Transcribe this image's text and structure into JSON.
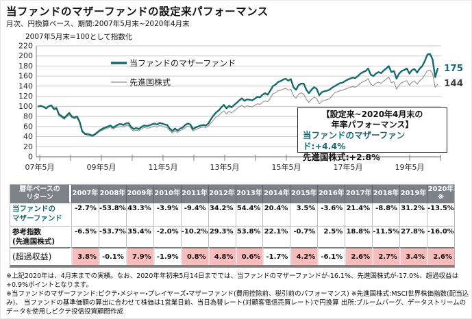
{
  "page": {
    "title": "当ファンドのマザーファンドの設定来パフォーマンス",
    "subtitle": "月次、円換算ベース、期間:2007年5月末~2020年4月末"
  },
  "colors": {
    "fund_teal": "#166a6d",
    "index_gray": "#8f8f8f",
    "axis_gray": "#7f7f7f",
    "grid_gray": "#c9c9c9",
    "table_header_bg": "#7d8288",
    "highlight_pink": "#f8bcbc"
  },
  "chart": {
    "index_note": "2007年5月末=100として指数化",
    "end_labels": {
      "fund": "175",
      "index": "144"
    },
    "annotation": {
      "heading": "【設定来~2020年4月末の\n年率パフォーマンス】",
      "fund_line": "当ファンドのマザーファンド:+4.4%",
      "index_line": "先進国株式:+2.8%"
    }
  },
  "chart_data": {
    "type": "line",
    "title": "当ファンドのマザーファンドの設定来パフォーマンス",
    "x_axis": {
      "frequency": "monthly",
      "x_start": "2007-05",
      "x_end": "2020-04",
      "tick_labels": [
        "07年5月",
        "09年5月",
        "11年5月",
        "13年5月",
        "15年5月",
        "17年5月",
        "19年5月"
      ]
    },
    "y_axis": {
      "min": 0,
      "max": 220,
      "step": 20,
      "note": "2007年5月末=100として指数化"
    },
    "grid": true,
    "legend_position": "inside-top-left",
    "series": [
      {
        "name": "当ファンドのマザーファンド",
        "color": "#166a6d",
        "end_value": 175,
        "values": [
          100,
          101,
          99,
          96,
          100,
          102,
          95,
          97,
          84,
          81,
          77,
          82,
          87,
          80,
          78,
          80,
          70,
          51,
          46,
          45,
          44,
          42,
          45,
          49,
          53,
          56,
          58,
          60,
          62,
          58,
          61,
          64,
          65,
          63,
          66,
          67,
          59,
          55,
          57,
          55,
          59,
          62,
          61,
          62,
          64,
          66,
          64,
          67,
          66,
          64,
          63,
          56,
          51,
          56,
          52,
          56,
          58,
          63,
          66,
          64,
          55,
          58,
          60,
          62,
          63,
          62,
          66,
          75,
          82,
          88,
          92,
          98,
          103,
          96,
          101,
          98,
          103,
          107,
          112,
          116,
          111,
          114,
          113,
          112,
          115,
          119,
          118,
          123,
          126,
          123,
          131,
          140,
          143,
          148,
          150,
          153,
          155,
          151,
          154,
          138,
          133,
          142,
          145,
          145,
          133,
          126,
          133,
          138,
          135,
          122,
          128,
          130,
          131,
          133,
          137,
          140,
          143,
          146,
          147,
          150,
          153,
          155,
          157,
          156,
          160,
          165,
          168,
          170,
          175,
          163,
          160,
          165,
          168,
          166,
          171,
          175,
          180,
          168,
          170,
          155,
          165,
          170,
          172,
          175,
          165,
          172,
          174,
          167,
          175,
          180,
          190,
          203,
          204,
          193,
          158,
          175
        ]
      },
      {
        "name": "先進国株式",
        "color": "#8f8f8f",
        "end_value": 144,
        "values": [
          100,
          101,
          98,
          95,
          99,
          101,
          93,
          94,
          81,
          78,
          74,
          79,
          83,
          77,
          75,
          77,
          67,
          49,
          44,
          43,
          42,
          40,
          43,
          47,
          51,
          53,
          55,
          57,
          59,
          55,
          58,
          59,
          60,
          59,
          62,
          62,
          55,
          51,
          53,
          51,
          55,
          58,
          57,
          57,
          59,
          61,
          59,
          62,
          61,
          59,
          58,
          52,
          47,
          52,
          48,
          52,
          54,
          58,
          61,
          59,
          51,
          54,
          56,
          58,
          59,
          58,
          61,
          67,
          73,
          79,
          82,
          87,
          91,
          85,
          90,
          87,
          91,
          95,
          99,
          102,
          98,
          101,
          100,
          99,
          102,
          105,
          104,
          108,
          111,
          109,
          116,
          125,
          127,
          131,
          132,
          134,
          136,
          132,
          134,
          121,
          116,
          124,
          127,
          124,
          114,
          108,
          114,
          118,
          116,
          105,
          110,
          112,
          113,
          115,
          121,
          127,
          129,
          131,
          132,
          134,
          136,
          138,
          139,
          138,
          141,
          146,
          149,
          151,
          155,
          144,
          141,
          146,
          148,
          146,
          150,
          154,
          158,
          147,
          149,
          134,
          142,
          147,
          149,
          151,
          142,
          148,
          150,
          144,
          151,
          155,
          163,
          171,
          172,
          165,
          138,
          144
        ]
      }
    ],
    "annotations": [
      "【設定来~2020年4月末の年率パフォーマンス】 当ファンドのマザーファンド:+4.4% 先進国株式:+2.8%"
    ]
  },
  "table": {
    "corner_header": "暦年ベースの\nリターン",
    "years": [
      "2007年",
      "2008年",
      "2009年",
      "2010年",
      "2011年",
      "2012年",
      "2013年",
      "2014年",
      "2015年",
      "2016年",
      "2017年",
      "2018年",
      "2019年",
      "2020年\n※"
    ],
    "rows": [
      {
        "label": "当ファンドの\nマザーファンド",
        "label_color": "#166a6d",
        "values": [
          "-2.7%",
          "-53.8%",
          "43.3%",
          "-3.9%",
          "-9.4%",
          "34.2%",
          "54.4%",
          "20.4%",
          "3.5%",
          "-3.6%",
          "21.4%",
          "-8.8%",
          "31.2%",
          "-13.5%"
        ]
      },
      {
        "label": "参考指数\n(先進国株式)",
        "label_color": "#111111",
        "values": [
          "-6.5%",
          "-53.7%",
          "35.4%",
          "-2.0%",
          "-10.2%",
          "29.3%",
          "53.8%",
          "22.1%",
          "-0.7%",
          "2.5%",
          "18.8%",
          "-11.5%",
          "27.8%",
          "-16.0%"
        ]
      },
      {
        "label": "(超過収益)",
        "label_color": "#111111",
        "values": [
          "3.8%",
          "-0.1%",
          "7.9%",
          "-1.9%",
          "0.8%",
          "4.8%",
          "0.6%",
          "-1.7%",
          "4.2%",
          "-6.1%",
          "2.6%",
          "2.7%",
          "3.4%",
          "2.6%"
        ],
        "highlight": [
          true,
          false,
          true,
          false,
          true,
          true,
          true,
          false,
          true,
          false,
          true,
          true,
          true,
          true
        ]
      }
    ]
  },
  "footnotes": [
    "※上記2020年は、4月末までの実績。なお、2020年年初来5月14日まででは、当ファンドのマザーファンドが-16.1%、先進国株式が-17.0%、超過収益は+0.9%ポイントとなります。",
    "※当ファンドのマザーファンド:ピクテ・メジャー・プレイヤーズ・マザーファンド(費用控除前、税引前のパフォーマンス) ※先進国株式:MSCI世界株価指数(配当込み)、 当ファンドの基準価額の算出に合わせて株価は1営業日前、当日為替レート(対顧客電信売買レート)で円換算 出所:ブルームバーグ、データストリームのデータを使用しピクテ投信投資顧問作成"
  ]
}
